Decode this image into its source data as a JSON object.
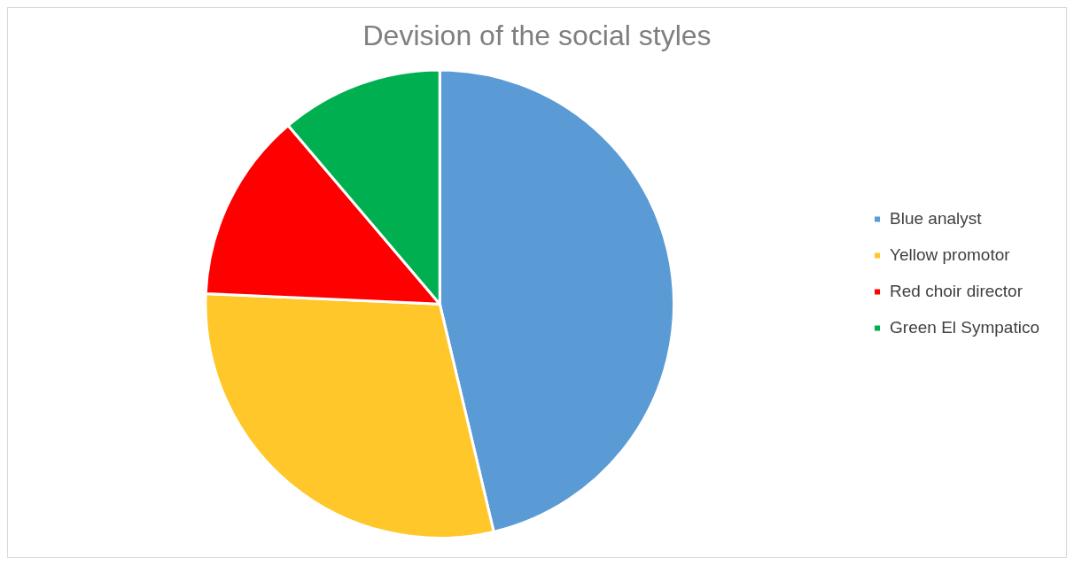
{
  "chart_data": {
    "type": "pie",
    "title": "Devision of the social styles",
    "categories": [
      "Blue analyst",
      "Yellow promotor",
      "Red choir director",
      "Green El Sympatico"
    ],
    "values": [
      46.3,
      29.4,
      13.1,
      11.2
    ],
    "colors": [
      "#5b9bd5",
      "#ffc729",
      "#ff0000",
      "#00b050"
    ],
    "legend": "right"
  }
}
